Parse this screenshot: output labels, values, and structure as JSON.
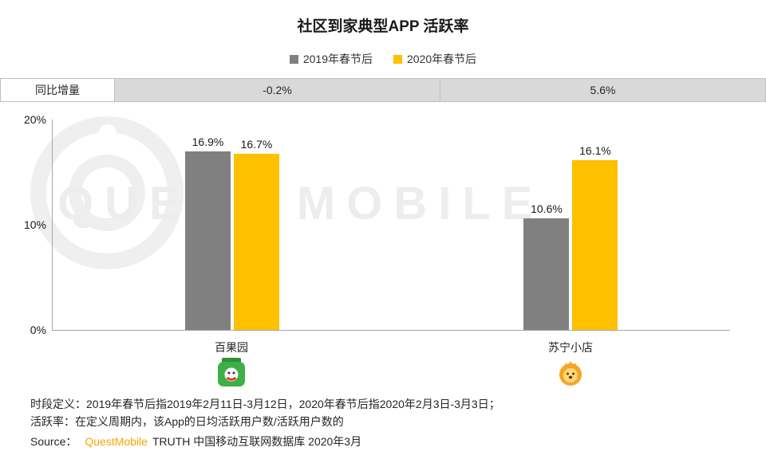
{
  "title": "社区到家典型APP 活跃率",
  "legend": [
    {
      "label": "2019年春节后",
      "color": "#808080"
    },
    {
      "label": "2020年春节后",
      "color": "#FFC000"
    }
  ],
  "yoy_row": {
    "label": "同比增量",
    "values": [
      "-0.2%",
      "5.6%"
    ]
  },
  "chart_data": {
    "type": "bar",
    "categories": [
      "百果园",
      "苏宁小店"
    ],
    "series": [
      {
        "name": "2019年春节后",
        "color": "#808080",
        "values": [
          16.9,
          10.6
        ]
      },
      {
        "name": "2020年春节后",
        "color": "#FFC000",
        "values": [
          16.7,
          16.1
        ]
      }
    ],
    "value_labels": [
      [
        "16.9%",
        "16.7%"
      ],
      [
        "10.6%",
        "16.1%"
      ]
    ],
    "ylim": [
      0,
      20
    ],
    "yticks": [
      "20%",
      "10%",
      "0%"
    ],
    "group_centers_pct": [
      26.5,
      76.5
    ],
    "grid": "off",
    "legend_position": "top"
  },
  "watermark": "QUEST MOBILE",
  "icons": {
    "category_icons": [
      "pagoda-app-icon",
      "suning-lion-icon"
    ]
  },
  "footnotes": [
    "时段定义：2019年春节后指2019年2月11日-3月12日，2020年春节后指2020年2月3日-3月3日；",
    "活跃率：在定义周期内，该App的日均活跃用户数/活跃用户数的"
  ],
  "source": {
    "prefix": "Source：",
    "brand": "QuestMobile",
    "brand_color": "#F7A600",
    "suffix": "TRUTH 中国移动互联网数据库 2020年3月"
  }
}
